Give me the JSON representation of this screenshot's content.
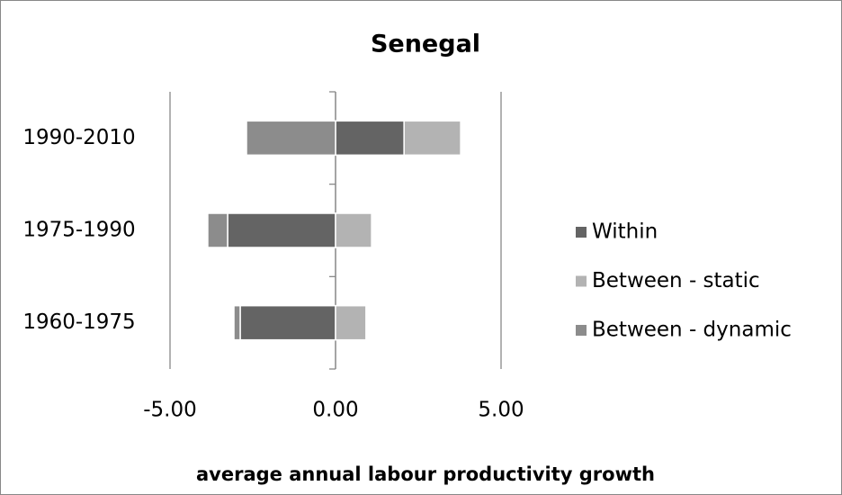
{
  "chart_data": {
    "type": "diverging-stacked-bar",
    "orientation": "horizontal",
    "title": "Senegal",
    "x_label": "average annual labour productivity growth",
    "categories": [
      "1960-1975",
      "1975-1990",
      "1990-2010"
    ],
    "series": [
      {
        "name": "Within",
        "color": "#646464",
        "values": [
          -2.88,
          -3.26,
          2.07
        ]
      },
      {
        "name": "Between - static",
        "color": "#b3b3b3",
        "values": [
          0.92,
          1.09,
          1.71
        ]
      },
      {
        "name": "Between - dynamic",
        "color": "#8c8c8c",
        "values": [
          -0.19,
          -0.6,
          -2.69
        ]
      }
    ],
    "xlim": [
      -5,
      5
    ],
    "xticks": [
      {
        "value": -5,
        "label": "-5.00"
      },
      {
        "value": 0,
        "label": "0.00"
      },
      {
        "value": 5,
        "label": "5.00"
      }
    ],
    "grid": true,
    "legend": "right"
  }
}
